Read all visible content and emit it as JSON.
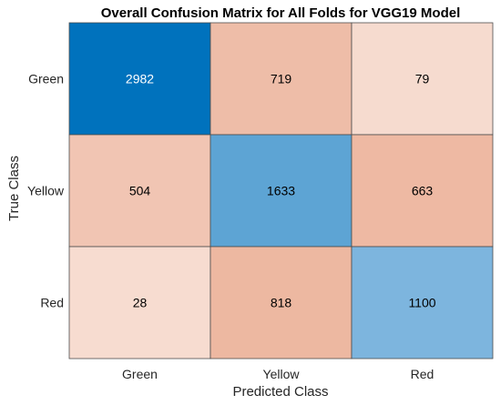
{
  "chart_data": {
    "type": "heatmap",
    "title": "Overall Confusion Matrix for All Folds for VGG19 Model",
    "xlabel": "Predicted Class",
    "ylabel": "True Class",
    "row_labels": [
      "Green",
      "Yellow",
      "Red"
    ],
    "col_labels": [
      "Green",
      "Yellow",
      "Red"
    ],
    "values": [
      [
        2982,
        719,
        79
      ],
      [
        504,
        1633,
        663
      ],
      [
        28,
        818,
        1100
      ]
    ],
    "cell_colors": [
      [
        "#0072BD",
        "#EEBDA8",
        "#F6DBCF"
      ],
      [
        "#F1C5B3",
        "#5DA4D4",
        "#EEB9A3"
      ],
      [
        "#F7DCD0",
        "#EDB8A1",
        "#7DB5DE"
      ]
    ],
    "text_colors": [
      [
        "#FFFFFF",
        "#000000",
        "#000000"
      ],
      [
        "#000000",
        "#000000",
        "#000000"
      ],
      [
        "#000000",
        "#000000",
        "#000000"
      ]
    ]
  }
}
